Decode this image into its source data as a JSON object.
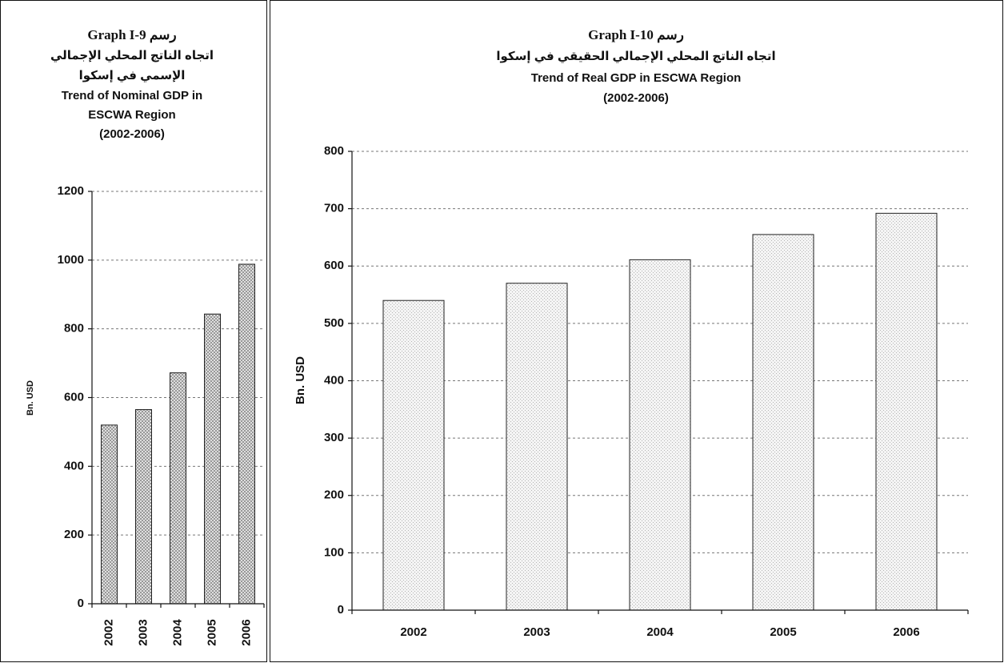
{
  "chart_data": [
    {
      "type": "bar",
      "title": [
        "Graph I-9 رسم",
        "اتجاه الناتج المحلي الإجمالي",
        "الإسمي في إسكوا",
        "Trend of Nominal GDP in",
        "ESCWA Region",
        "(2002-2006)"
      ],
      "ylabel": "Bn. USD",
      "categories": [
        "2002",
        "2003",
        "2004",
        "2005",
        "2006"
      ],
      "values": [
        520,
        565,
        672,
        843,
        988
      ],
      "color": "#8a8a8a",
      "ylim": [
        0,
        1200
      ],
      "yticks": [
        0,
        200,
        400,
        600,
        800,
        1000,
        1200
      ],
      "grid": true
    },
    {
      "type": "bar",
      "title": [
        "Graph I-10 رسم",
        "اتجاه الناتج المحلي الإجمالي الحقيقي في إسكوا",
        "Trend of Real GDP in ESCWA Region",
        "(2002-2006)"
      ],
      "ylabel": "Bn. USD",
      "categories": [
        "2002",
        "2003",
        "2004",
        "2005",
        "2006"
      ],
      "values": [
        540,
        570,
        611,
        655,
        692
      ],
      "color": "#b5b5b5",
      "ylim": [
        0,
        800
      ],
      "yticks": [
        0,
        100,
        200,
        300,
        400,
        500,
        600,
        700,
        800
      ],
      "grid": true
    }
  ]
}
